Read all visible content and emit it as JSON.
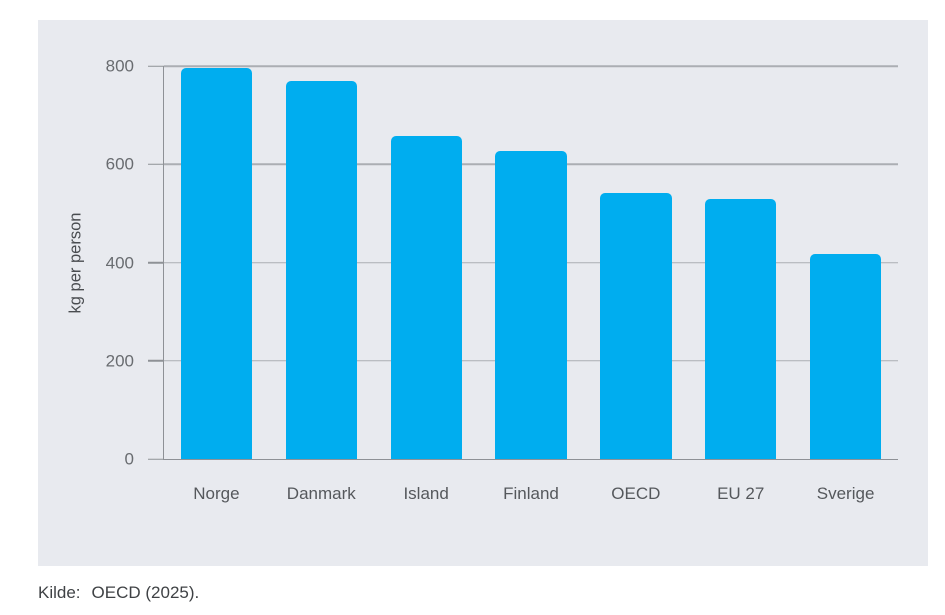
{
  "source": {
    "label": "Kilde:",
    "text": "OECD (2025)."
  },
  "chart_data": {
    "type": "bar",
    "categories": [
      "Norge",
      "Danmark",
      "Island",
      "Finland",
      "OECD",
      "EU 27",
      "Sverige"
    ],
    "values": [
      795,
      769,
      658,
      628,
      541,
      530,
      417
    ],
    "title": "",
    "xlabel": "",
    "ylabel": "kg per person",
    "ylim": [
      0,
      800
    ],
    "yticks": [
      0,
      200,
      400,
      600,
      800
    ],
    "grid": true,
    "legend": "none",
    "colors": {
      "bar": "#00ADEF",
      "panel_background": "#E8EAEF",
      "gridline": "#ABAEB3",
      "axis": "#8E9196",
      "tick_label": "#696C70",
      "category_label": "#55585C",
      "axis_label": "#494C50",
      "source_text": "#3F4245"
    }
  }
}
